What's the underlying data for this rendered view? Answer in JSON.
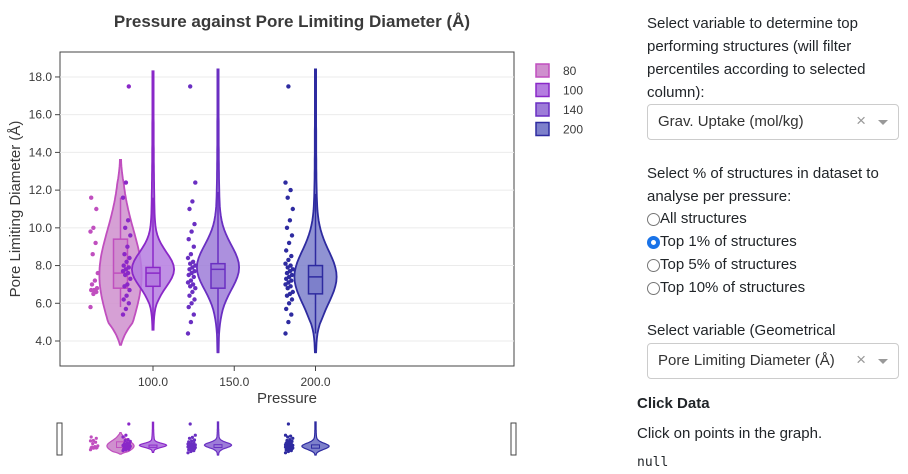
{
  "chart_data": {
    "type": "violin",
    "title": "Pressure against Pore Limiting Diameter (Å)",
    "xlabel": "Pressure",
    "ylabel": "Pore Limiting Diameter (Å)",
    "x_ticks": [
      "100.0",
      "150.0",
      "200.0"
    ],
    "y_ticks": [
      "4.0",
      "6.0",
      "8.0",
      "10.0",
      "12.0",
      "14.0",
      "16.0",
      "18.0"
    ],
    "ylim": [
      3.0,
      19.0
    ],
    "legend_position": "top-right",
    "series": [
      {
        "name": "80",
        "x": 80,
        "color": "#c04fbf",
        "fill": "#cf8fce",
        "min": 5.8,
        "q1": 6.8,
        "median": 7.6,
        "q3": 9.4,
        "max": 11.6,
        "kde_min": 3.8,
        "kde_max": 13.6,
        "mode": 7.5,
        "points": [
          5.8,
          6.5,
          6.6,
          6.7,
          6.7,
          6.8,
          7.0,
          7.2,
          7.6,
          8.6,
          9.2,
          9.8,
          10.0,
          11.0,
          11.6
        ]
      },
      {
        "name": "100",
        "x": 100,
        "color": "#8a28c8",
        "fill": "#b57de0",
        "min": 5.0,
        "q1": 6.9,
        "median": 7.6,
        "q3": 7.9,
        "max": 11.6,
        "kde_min": 4.6,
        "kde_max": 18.3,
        "mode": 7.8,
        "points": [
          5.4,
          5.7,
          6.0,
          6.2,
          6.4,
          6.7,
          6.9,
          7.0,
          7.3,
          7.5,
          7.6,
          7.7,
          7.8,
          7.9,
          8.0,
          8.2,
          8.4,
          8.6,
          9.0,
          9.6,
          10.0,
          10.4,
          11.6,
          12.4,
          17.5
        ]
      },
      {
        "name": "140",
        "x": 140,
        "color": "#6a2fc2",
        "fill": "#9d7cd8",
        "min": 4.4,
        "q1": 6.8,
        "median": 7.8,
        "q3": 8.1,
        "max": 11.9,
        "kde_min": 3.4,
        "kde_max": 18.4,
        "mode": 7.9,
        "points": [
          4.4,
          5.0,
          5.4,
          5.8,
          6.0,
          6.2,
          6.4,
          6.6,
          6.8,
          6.9,
          7.0,
          7.1,
          7.2,
          7.4,
          7.5,
          7.6,
          7.7,
          7.8,
          7.9,
          8.0,
          8.1,
          8.2,
          8.4,
          8.6,
          9.0,
          9.4,
          9.8,
          10.2,
          11.0,
          11.4,
          12.4,
          17.5
        ]
      },
      {
        "name": "200",
        "x": 200,
        "color": "#2e2ba0",
        "fill": "#7d80cb",
        "min": 4.4,
        "q1": 6.5,
        "median": 7.4,
        "q3": 8.0,
        "max": 11.8,
        "kde_min": 3.4,
        "kde_max": 18.4,
        "mode": 7.4,
        "points": [
          4.4,
          5.0,
          5.4,
          5.7,
          6.0,
          6.2,
          6.4,
          6.5,
          6.6,
          6.8,
          6.9,
          7.0,
          7.1,
          7.2,
          7.3,
          7.4,
          7.5,
          7.6,
          7.7,
          7.8,
          7.9,
          8.0,
          8.1,
          8.3,
          8.5,
          8.8,
          9.2,
          9.6,
          10.0,
          10.4,
          11.0,
          11.6,
          12.0,
          12.4,
          17.5
        ]
      }
    ]
  },
  "panel": {
    "select_target_label": "Select variable to determine top performing structures (will filter percentiles according to selected column):",
    "select_target_value": "Grav. Uptake (mol/kg)",
    "clear_glyph": "×",
    "percent_label": "Select % of structures in dataset to analyse per pressure:",
    "radio_options": [
      "All structures",
      "Top 1% of structures",
      "Top 5% of structures",
      "Top 10% of structures"
    ],
    "radio_selected": 1,
    "geom_label": "Select variable (Geometrical Property):",
    "geom_value": "Pore Limiting Diameter (Å)",
    "click_heading": "Click Data",
    "click_help": "Click on points in the graph.",
    "click_output": "null"
  }
}
